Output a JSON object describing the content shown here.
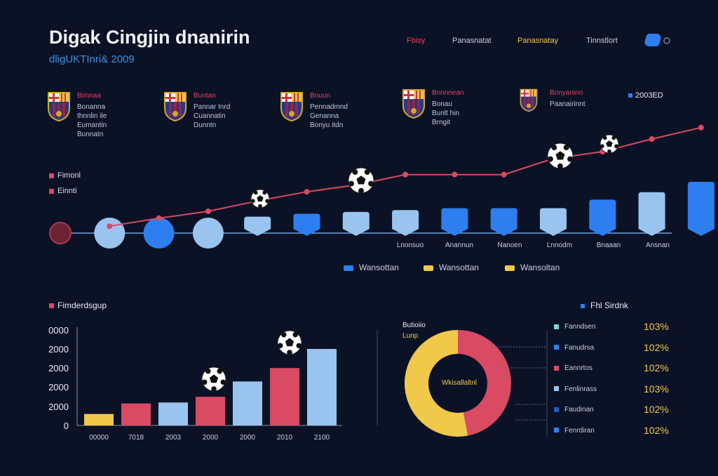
{
  "header": {
    "title": "Digak Cingjin dnanirin",
    "subtitle": "dligUKTInri& 2009",
    "nav": [
      "Fbisy",
      "Panasnatat",
      "Panasnatay",
      "Tinnstlort"
    ]
  },
  "clubs": [
    {
      "name": "Bimnaa",
      "desc": [
        "Bonanna",
        "thnnlin ile",
        "Eumantin",
        "Bunnatn"
      ]
    },
    {
      "name": "Buntan",
      "desc": [
        "Pannar Inrd",
        "Cuannatin",
        "Dunntn"
      ]
    },
    {
      "name": "Bnuun",
      "desc": [
        "Pennadmnd",
        "Genanna",
        "Bonyu itdn"
      ]
    },
    {
      "name": "Bnnnnean",
      "desc": [
        "Bonau",
        "Bunlt hin",
        "Brngit"
      ]
    },
    {
      "name": "Bnnyaninn",
      "desc": [
        "Paanairinnt"
      ]
    }
  ],
  "top_right_stat": "2003ED",
  "top_chart_side_legend": [
    "Fimonl",
    "Einnti"
  ],
  "top_chart_x_labels": [
    "Lnonsuo",
    "Anannun",
    "Nanoen",
    "Lnnodm",
    "Bnaaan",
    "Ansnan"
  ],
  "top_chart_legend": [
    {
      "label": "Wansottan",
      "color": "#2d7ff0"
    },
    {
      "label": "Wansottan",
      "color": "#f0c84a"
    },
    {
      "label": "Wansoltan",
      "color": "#f0c84a"
    }
  ],
  "bottom_section_label": "Fimderdsgup",
  "right_legend_header": "Fhl Sirdnk",
  "right_legend": [
    {
      "label": "Fanndsen",
      "pct": "103%",
      "color": "#7fd6c4"
    },
    {
      "label": "Fanudrsa",
      "pct": "102%",
      "color": "#2d7ff0"
    },
    {
      "label": "Eannrtos",
      "pct": "102%",
      "color": "#d94a63"
    },
    {
      "label": "Fenlinrass",
      "pct": "103%",
      "color": "#9ac4f0"
    },
    {
      "label": "Faudinan",
      "pct": "102%",
      "color": "#1f5fbf"
    },
    {
      "label": "Fenrdiran",
      "pct": "102%",
      "color": "#2d7ff0"
    }
  ],
  "colors": {
    "blue": "#2d7ff0",
    "light_blue": "#9ac4f0",
    "red": "#d94a63",
    "yellow": "#f0c84a",
    "maroon": "#6b2233"
  },
  "chart_data": [
    {
      "type": "bar",
      "categories": [
        "",
        "",
        "",
        "",
        "",
        "",
        "",
        "",
        "",
        "",
        "",
        "",
        "",
        ""
      ],
      "values": [
        0,
        0,
        0,
        0,
        1,
        1.3,
        1.5,
        1.7,
        1.9,
        1.9,
        1.9,
        2.8,
        3.6,
        4.7
      ],
      "line_values": [
        0,
        0.6,
        1.3,
        1.9,
        2.8,
        3.6,
        4.2,
        5.1,
        5.1,
        5.1,
        6.5,
        7.1,
        8.2,
        9.2
      ],
      "xlabel": "",
      "ylabel": "",
      "ylim": [
        0,
        10
      ]
    },
    {
      "type": "bar",
      "categories": [
        "00000",
        "7018",
        "2003",
        "2000",
        "2000",
        "2010",
        "2100"
      ],
      "values": [
        600,
        1150,
        1200,
        1500,
        2300,
        3000,
        4000
      ],
      "y_tick_labels": [
        "0000",
        "2000",
        "2000",
        "2000",
        "2000",
        "0"
      ],
      "ylim": [
        0,
        5000
      ],
      "xlabel": "",
      "ylabel": ""
    },
    {
      "type": "pie",
      "title": "Butioiio",
      "subtitle": "Lunp",
      "center_label": "Wkisallaltnl",
      "slices": [
        {
          "name": "red",
          "value": 47
        },
        {
          "name": "yellow",
          "value": 53
        }
      ]
    }
  ]
}
